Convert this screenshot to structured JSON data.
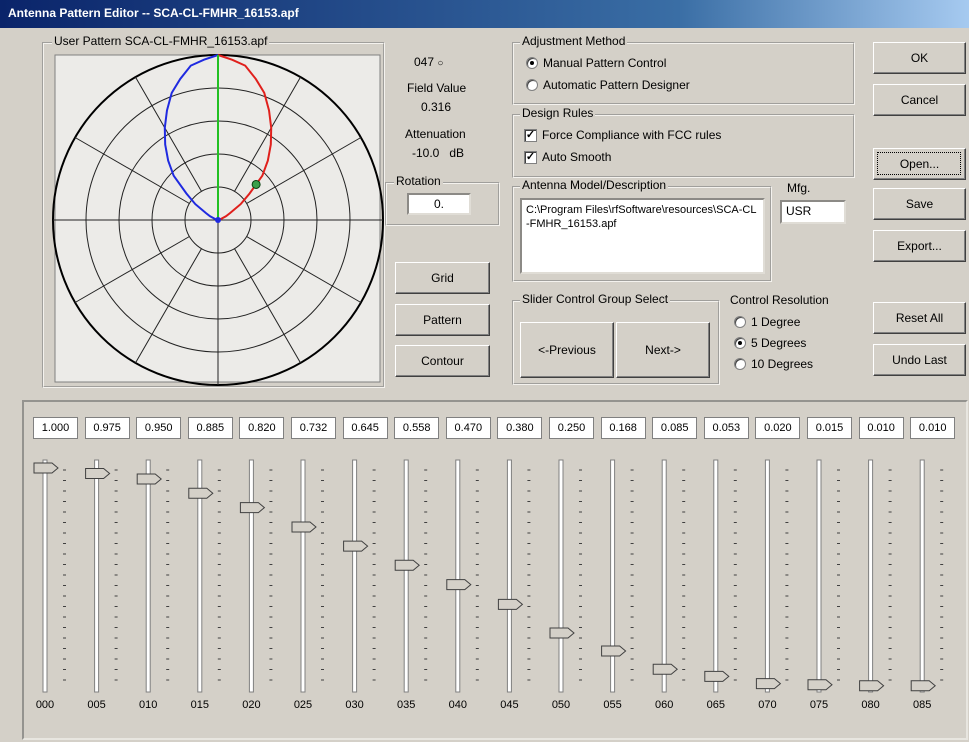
{
  "window": {
    "title": "Antenna Pattern Editor -- SCA-CL-FMHR_16153.apf"
  },
  "pattern": {
    "label": "User Pattern SCA-CL-FMHR_16153.apf"
  },
  "readout": {
    "angle": "047",
    "field_label": "Field Value",
    "field_value": "0.316",
    "attenuation_label": "Attenuation",
    "attenuation_value": "-10.0",
    "attenuation_unit": "dB"
  },
  "rotation": {
    "label": "Rotation",
    "value": "0."
  },
  "view_buttons": [
    "Grid",
    "Pattern",
    "Contour"
  ],
  "adjustment_method": {
    "label": "Adjustment Method",
    "options": [
      {
        "text": "Manual Pattern Control",
        "selected": true
      },
      {
        "text": "Automatic Pattern Designer",
        "selected": false
      }
    ]
  },
  "design_rules": {
    "label": "Design Rules",
    "options": [
      {
        "text": "Force Compliance with FCC rules",
        "checked": true
      },
      {
        "text": "Auto Smooth",
        "checked": true
      }
    ]
  },
  "antenna_model": {
    "label": "Antenna Model/Description",
    "text": "C:\\Program Files\\rfSoftware\\resources\\SCA-CL-FMHR_16153.apf"
  },
  "mfg": {
    "label": "Mfg.",
    "value": "USR"
  },
  "slider_group": {
    "label": "Slider Control Group Select",
    "buttons": [
      "<-Previous",
      "Next->"
    ]
  },
  "control_resolution": {
    "label": "Control Resolution",
    "options": [
      {
        "text": "1 Degree",
        "selected": false
      },
      {
        "text": "5 Degrees",
        "selected": true
      },
      {
        "text": "10 Degrees",
        "selected": false
      }
    ]
  },
  "action_buttons": [
    "OK",
    "Cancel",
    "Open...",
    "Save",
    "Export...",
    "Reset All",
    "Undo Last"
  ],
  "sliders": [
    {
      "angle": "000",
      "value": "1.000"
    },
    {
      "angle": "005",
      "value": "0.975"
    },
    {
      "angle": "010",
      "value": "0.950"
    },
    {
      "angle": "015",
      "value": "0.885"
    },
    {
      "angle": "020",
      "value": "0.820"
    },
    {
      "angle": "025",
      "value": "0.732"
    },
    {
      "angle": "030",
      "value": "0.645"
    },
    {
      "angle": "035",
      "value": "0.558"
    },
    {
      "angle": "040",
      "value": "0.470"
    },
    {
      "angle": "045",
      "value": "0.380"
    },
    {
      "angle": "050",
      "value": "0.250"
    },
    {
      "angle": "055",
      "value": "0.168"
    },
    {
      "angle": "060",
      "value": "0.085"
    },
    {
      "angle": "065",
      "value": "0.053"
    },
    {
      "angle": "070",
      "value": "0.020"
    },
    {
      "angle": "075",
      "value": "0.015"
    },
    {
      "angle": "080",
      "value": "0.010"
    },
    {
      "angle": "085",
      "value": "0.010"
    }
  ]
}
